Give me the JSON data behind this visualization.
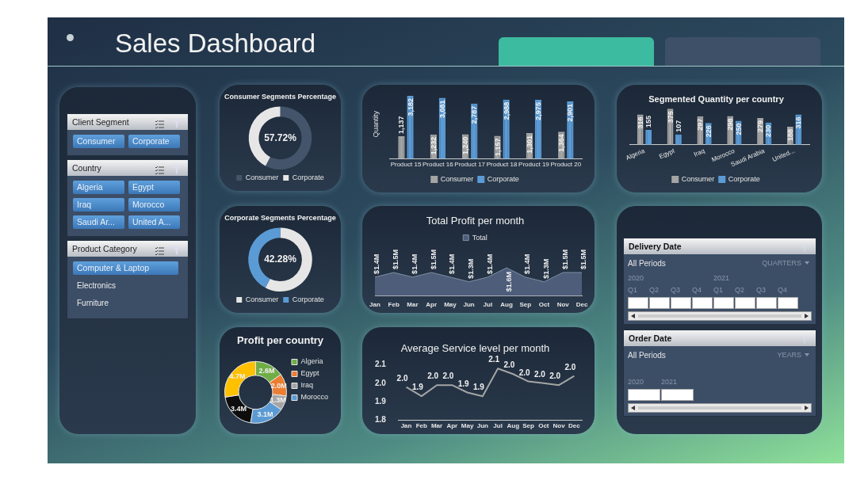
{
  "chart_data": [
    {
      "type": "other",
      "title": "Sales Dashboard"
    },
    {
      "type": "other",
      "title": "Client Segment",
      "annotations": [
        "Consumer",
        "Corporate"
      ]
    },
    {
      "type": "other",
      "title": "Country",
      "annotations": [
        "Algeria",
        "Egypt",
        "Iraq",
        "Morocco",
        "Saudi Ar...",
        "United A..."
      ]
    },
    {
      "type": "other",
      "title": "Product Category",
      "annotations": [
        "Computer & Laptop",
        "Electronics",
        "Furniture"
      ]
    },
    {
      "type": "donut",
      "title": "Consumer Segments Percentage",
      "categories": [
        "Consumer",
        "Corporate"
      ],
      "values": [
        57.72,
        42.28
      ],
      "colors": [
        "#44546a",
        "#e7e6e6"
      ],
      "annotations": [
        "57.72%"
      ],
      "legend": "bottom"
    },
    {
      "type": "bar",
      "ylabel": "Quantity",
      "categories": [
        "Product 15",
        "Product 16",
        "Product 17",
        "Product 18",
        "Product 19",
        "Product 20"
      ],
      "series": [
        {
          "name": "Consumer",
          "color": "#a5a5a5",
          "values": [
            1137,
            1232,
            1240,
            1157,
            1301,
            1364
          ],
          "value_labels": [
            "1,137",
            "1,232",
            "1,240",
            "1,157",
            "1,301",
            "1,364"
          ]
        },
        {
          "name": "Corporate",
          "color": "#5b9bd5",
          "values": [
            3182,
            3081,
            2787,
            2988,
            2975,
            2901
          ],
          "value_labels": [
            "3,182",
            "3,081",
            "2,787",
            "2,988",
            "2,975",
            "2,901"
          ]
        }
      ],
      "legend": "bottom",
      "tick_labels": "x"
    },
    {
      "type": "bar",
      "title": "Segmented Quantity per country",
      "categories": [
        "Algeria",
        "Egypt",
        "Iraq",
        "Morocco",
        "Saudi Arabia",
        "United..."
      ],
      "series": [
        {
          "name": "Consumer",
          "color": "#a5a5a5",
          "values": [
            316,
            375,
            297,
            298,
            279,
            188
          ]
        },
        {
          "name": "Corporate",
          "color": "#5b9bd5",
          "values": [
            155,
            107,
            226,
            250,
            230,
            316
          ]
        }
      ],
      "data_labels": true,
      "legend": "bottom",
      "tick_labels": "x"
    },
    {
      "type": "donut",
      "title": "Corporate Segments Percentage",
      "categories": [
        "Consumer",
        "Corporate"
      ],
      "values": [
        57.72,
        42.28
      ],
      "colors": [
        "#e7e6e6",
        "#5b9bd5"
      ],
      "annotations": [
        "42.28%"
      ],
      "legend": "bottom"
    },
    {
      "type": "area",
      "title": "Total Profit per month",
      "categories": [
        "Jan",
        "Feb",
        "Mar",
        "Apr",
        "May",
        "Jun",
        "Jul",
        "Aug",
        "Sep",
        "Oct",
        "Nov",
        "Dec"
      ],
      "series": [
        {
          "name": "Total",
          "color": "#4d5d7a",
          "values": [
            1.4,
            1.5,
            1.4,
            1.5,
            1.4,
            1.3,
            1.4,
            1.6,
            1.4,
            1.3,
            1.5,
            1.5
          ],
          "value_labels": [
            "$1.4M",
            "$1.5M",
            "$1.4M",
            "$1.5M",
            "$1.4M",
            "$1.3M",
            "$1.4M",
            "$1.6M",
            "$1.4M",
            "$1.3M",
            "$1.5M",
            "$1.5M"
          ]
        }
      ],
      "legend": "top",
      "tick_labels": "x"
    },
    {
      "type": "donut",
      "title": "Profit per country",
      "categories": [
        "Algeria",
        "Egypt",
        "Iraq",
        "Morocco",
        null,
        null
      ],
      "values": [
        2.6,
        2.0,
        1.3,
        3.1,
        3.4,
        4.7
      ],
      "colors": [
        "#70ad47",
        "#ed7d31",
        "#a5a5a5",
        "#5b9bd5",
        "#0d0d0d",
        "#ffc000"
      ],
      "value_labels": [
        "2.6M",
        "2.0M",
        "1.3M",
        "3.1M",
        "3.4M",
        "4.7M"
      ],
      "legend": "right"
    },
    {
      "type": "line",
      "title": "Average Service level per month",
      "categories": [
        "Jan",
        "Feb",
        "Mar",
        "Apr",
        "May",
        "Jun",
        "Jul",
        "Aug",
        "Sep",
        "Oct",
        "Nov",
        "Dec"
      ],
      "values": [
        1.98,
        1.93,
        1.99,
        1.99,
        1.95,
        1.93,
        2.08,
        2.05,
        2.01,
        2.0,
        1.99,
        2.04
      ],
      "color": "#a5a5a5",
      "value_labels": [
        "2.0",
        "1.9",
        "2.0",
        "2.0",
        "1.9",
        "1.9",
        "2.1",
        "2.0",
        "2.0",
        "2.0",
        "2.0",
        "2.0"
      ],
      "ylim": [
        1.8,
        2.1
      ],
      "yticks": [
        1.8,
        1.9,
        {
          "value": 2,
          "label": "2.0"
        },
        2.1
      ],
      "marker": "none"
    },
    {
      "type": "other",
      "title": "Delivery Date",
      "annotations": [
        "All Periods",
        "QUARTERS",
        "2020",
        "2021",
        "Q1",
        "Q2",
        "Q3",
        "Q4",
        "Q1",
        "Q2",
        "Q3",
        "Q4"
      ]
    },
    {
      "type": "other",
      "title": "Order Date",
      "annotations": [
        "All Periods",
        "YEARS",
        "2020",
        "2021"
      ]
    }
  ]
}
